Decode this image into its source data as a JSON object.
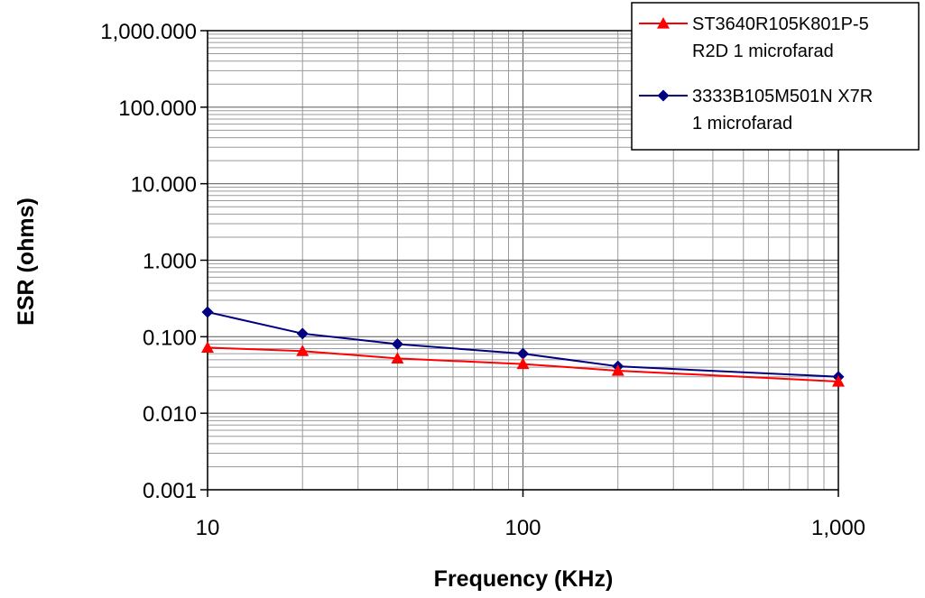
{
  "chart_data": {
    "type": "line",
    "title": "",
    "xlabel": "Frequency (KHz)",
    "ylabel": "ESR (ohms)",
    "xscale": "log",
    "yscale": "log",
    "xlim": [
      10,
      1000
    ],
    "ylim": [
      0.001,
      1000
    ],
    "x_tick_labels": [
      "10",
      "100",
      "1,000"
    ],
    "y_tick_labels": [
      "0.001",
      "0.010",
      "0.100",
      "1.000",
      "10.000",
      "100.000",
      "1,000.000"
    ],
    "grid": true,
    "legend_position": "top-right",
    "series": [
      {
        "name_lines": [
          "ST3640R105K801P-5",
          "R2D 1 microfarad"
        ],
        "color": "#ff0000",
        "marker": "triangle",
        "x": [
          10,
          20,
          40,
          100,
          200,
          1000
        ],
        "y": [
          0.072,
          0.065,
          0.052,
          0.044,
          0.036,
          0.026
        ]
      },
      {
        "name_lines": [
          "3333B105M501N X7R",
          "1 microfarad"
        ],
        "color": "#000080",
        "marker": "diamond",
        "x": [
          10,
          20,
          40,
          100,
          200,
          1000
        ],
        "y": [
          0.21,
          0.11,
          0.08,
          0.06,
          0.041,
          0.03
        ]
      }
    ]
  }
}
